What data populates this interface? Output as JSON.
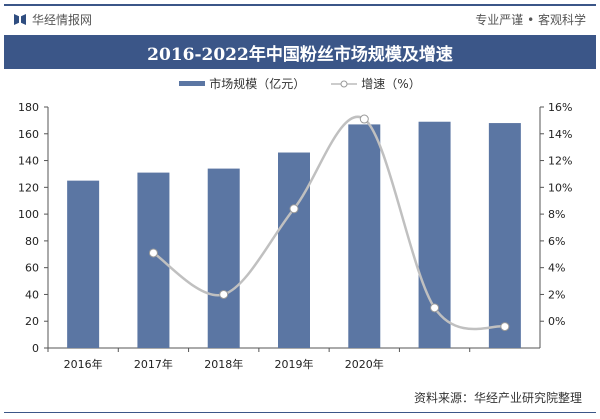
{
  "header": {
    "brand": "华经情报网",
    "slogan": "专业严谨 • 客观科学"
  },
  "title": "2016-2022年中国粉丝市场规模及增速",
  "source": "资料来源：华经产业研究院整理",
  "chart_data": {
    "type": "bar+line",
    "title": "2016-2022年中国粉丝市场规模及增速",
    "categories": [
      "2016年",
      "2017年",
      "2018年",
      "2019年",
      "2020年",
      "",
      ""
    ],
    "series": [
      {
        "name": "市场规模（亿元）",
        "type": "bar",
        "axis": "left",
        "color": "#5b76a3",
        "values": [
          125,
          131,
          134,
          146,
          167,
          169,
          168
        ]
      },
      {
        "name": "增速（%）",
        "type": "line",
        "axis": "right",
        "color": "#c0c0c0",
        "values": [
          null,
          5.1,
          2.0,
          8.4,
          15.1,
          1.0,
          -0.4
        ]
      }
    ],
    "left_axis": {
      "ylim": [
        0,
        180
      ],
      "ticks": [
        "0",
        "20",
        "40",
        "60",
        "80",
        "100",
        "120",
        "140",
        "160",
        "180"
      ]
    },
    "right_axis": {
      "ylim": [
        -2,
        16
      ],
      "ticks": [
        "0%",
        "2%",
        "4%",
        "6%",
        "8%",
        "10%",
        "12%",
        "14%",
        "16%"
      ]
    },
    "legend": "top",
    "grid": false
  }
}
